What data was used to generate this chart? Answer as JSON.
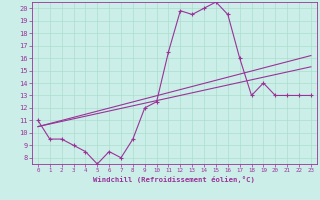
{
  "xlabel": "Windchill (Refroidissement éolien,°C)",
  "bg_color": "#cceee8",
  "grid_color": "#aaddcc",
  "line_color": "#993399",
  "xlim": [
    -0.5,
    23.5
  ],
  "ylim": [
    7.5,
    20.5
  ],
  "xticks": [
    0,
    1,
    2,
    3,
    4,
    5,
    6,
    7,
    8,
    9,
    10,
    11,
    12,
    13,
    14,
    15,
    16,
    17,
    18,
    19,
    20,
    21,
    22,
    23
  ],
  "yticks": [
    8,
    9,
    10,
    11,
    12,
    13,
    14,
    15,
    16,
    17,
    18,
    19,
    20
  ],
  "series_main": {
    "x": [
      0,
      1,
      2,
      3,
      4,
      5,
      6,
      7,
      8,
      9,
      10,
      11,
      12,
      13,
      14,
      15,
      16,
      17,
      18,
      19,
      20,
      21,
      22,
      23
    ],
    "y": [
      11.0,
      9.5,
      9.5,
      9.0,
      8.5,
      7.5,
      8.5,
      8.0,
      9.5,
      12.0,
      12.5,
      16.5,
      19.8,
      19.5,
      20.0,
      20.5,
      19.5,
      16.0,
      13.0,
      14.0,
      13.0,
      13.0,
      13.0,
      13.0
    ]
  },
  "series_upper": {
    "x": [
      0,
      23
    ],
    "y": [
      10.5,
      16.2
    ]
  },
  "series_lower": {
    "x": [
      0,
      23
    ],
    "y": [
      10.5,
      15.3
    ]
  },
  "marker": "+",
  "markersize": 3.0,
  "linewidth_main": 0.8,
  "linewidth_linear": 0.8
}
